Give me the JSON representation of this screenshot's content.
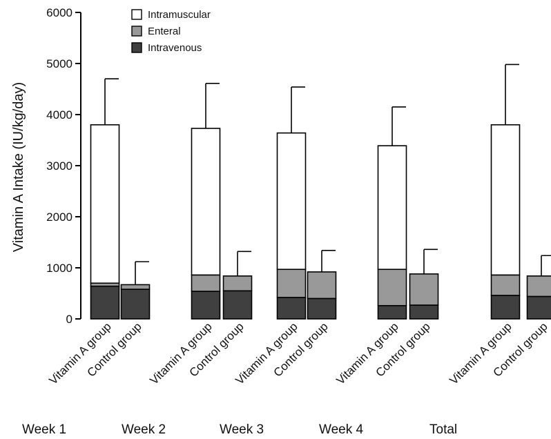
{
  "chart_data": {
    "type": "bar",
    "stacked": true,
    "ylabel": "Vitamin A Intake (IU/kg/day)",
    "ylim": [
      0,
      6000
    ],
    "yticks": [
      0,
      1000,
      2000,
      3000,
      4000,
      5000,
      6000
    ],
    "groups": [
      "Week 1",
      "Week 2",
      "Week 3",
      "Week 4",
      "Total"
    ],
    "categories": [
      "Vitamin A group",
      "Control group",
      "Vitamin A group",
      "Control group",
      "Vitamin A group",
      "Control group",
      "Vitamin A group",
      "Control group",
      "Vitamin A group",
      "Control group"
    ],
    "series": [
      {
        "name": "Intravenous",
        "color": "#404040",
        "values": [
          640,
          580,
          540,
          550,
          420,
          400,
          260,
          270,
          460,
          440
        ]
      },
      {
        "name": "Enteral",
        "color": "#999999",
        "values": [
          60,
          90,
          320,
          290,
          550,
          520,
          710,
          610,
          400,
          400
        ]
      },
      {
        "name": "Intramuscular",
        "color": "#ffffff",
        "values": [
          3100,
          0,
          2870,
          0,
          2670,
          0,
          2420,
          0,
          2940,
          0
        ]
      }
    ],
    "error_upper": [
      4700,
      1120,
      4610,
      1320,
      4540,
      1340,
      4150,
      1360,
      4980,
      1240
    ],
    "legend": {
      "placement": "top-left",
      "order": [
        "Intramuscular",
        "Enteral",
        "Intravenous"
      ]
    },
    "grid": false
  }
}
